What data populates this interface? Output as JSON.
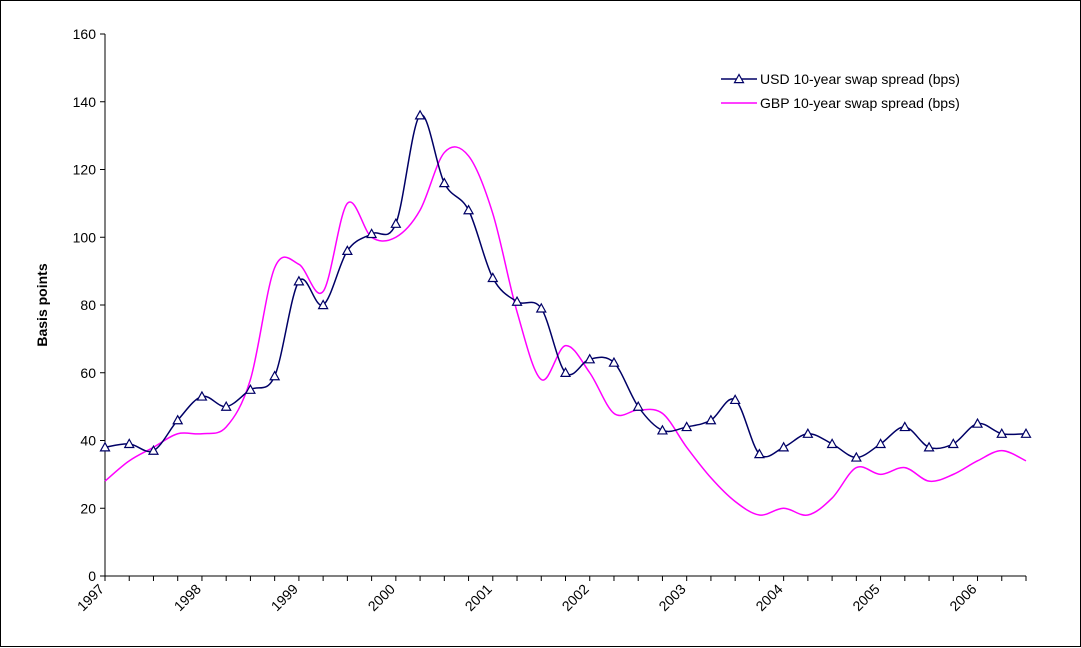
{
  "chart_data": {
    "type": "line",
    "title": "",
    "xlabel": "",
    "ylabel": "Basis points",
    "ylim": [
      0,
      160
    ],
    "yticks": [
      0,
      20,
      40,
      60,
      80,
      100,
      120,
      140,
      160
    ],
    "xlim": [
      1997.0,
      2006.5
    ],
    "xticks": [
      "1997",
      "1998",
      "1999",
      "2000",
      "2001",
      "2002",
      "2003",
      "2004",
      "2005",
      "2006"
    ],
    "grid": false,
    "legend": "top-right",
    "series": [
      {
        "name": "USD 10-year swap spread (bps)",
        "color": "#000066",
        "marker": "triangle",
        "x": [
          1997.0,
          1997.25,
          1997.5,
          1997.75,
          1998.0,
          1998.25,
          1998.5,
          1998.75,
          1999.0,
          1999.25,
          1999.5,
          1999.75,
          2000.0,
          2000.25,
          2000.5,
          2000.75,
          2001.0,
          2001.25,
          2001.5,
          2001.75,
          2002.0,
          2002.25,
          2002.5,
          2002.75,
          2003.0,
          2003.25,
          2003.5,
          2003.75,
          2004.0,
          2004.25,
          2004.5,
          2004.75,
          2005.0,
          2005.25,
          2005.5,
          2005.75,
          2006.0,
          2006.25,
          2006.5
        ],
        "y": [
          38,
          39,
          37,
          46,
          53,
          50,
          55,
          59,
          87,
          80,
          96,
          101,
          104,
          136,
          116,
          108,
          88,
          81,
          79,
          60,
          64,
          63,
          50,
          43,
          44,
          46,
          52,
          36,
          38,
          42,
          39,
          35,
          39,
          44,
          38,
          39,
          45,
          42,
          42
        ]
      },
      {
        "name": "GBP 10-year swap spread (bps)",
        "color": "#ff00ff",
        "marker": "none",
        "x": [
          1997.0,
          1997.25,
          1997.5,
          1997.75,
          1998.0,
          1998.25,
          1998.5,
          1998.75,
          1999.0,
          1999.25,
          1999.5,
          1999.75,
          2000.0,
          2000.25,
          2000.5,
          2000.75,
          2001.0,
          2001.25,
          2001.5,
          2001.75,
          2002.0,
          2002.25,
          2002.5,
          2002.75,
          2003.0,
          2003.25,
          2003.5,
          2003.75,
          2004.0,
          2004.25,
          2004.5,
          2004.75,
          2005.0,
          2005.25,
          2005.5,
          2005.75,
          2006.0,
          2006.25,
          2006.5
        ],
        "y": [
          28,
          34,
          38,
          42,
          42,
          44,
          58,
          91,
          92,
          84,
          110,
          100,
          100,
          108,
          125,
          124,
          107,
          78,
          58,
          68,
          60,
          48,
          49,
          48,
          38,
          29,
          22,
          18,
          20,
          18,
          23,
          32,
          30,
          32,
          28,
          30,
          34,
          37,
          34
        ]
      }
    ]
  }
}
